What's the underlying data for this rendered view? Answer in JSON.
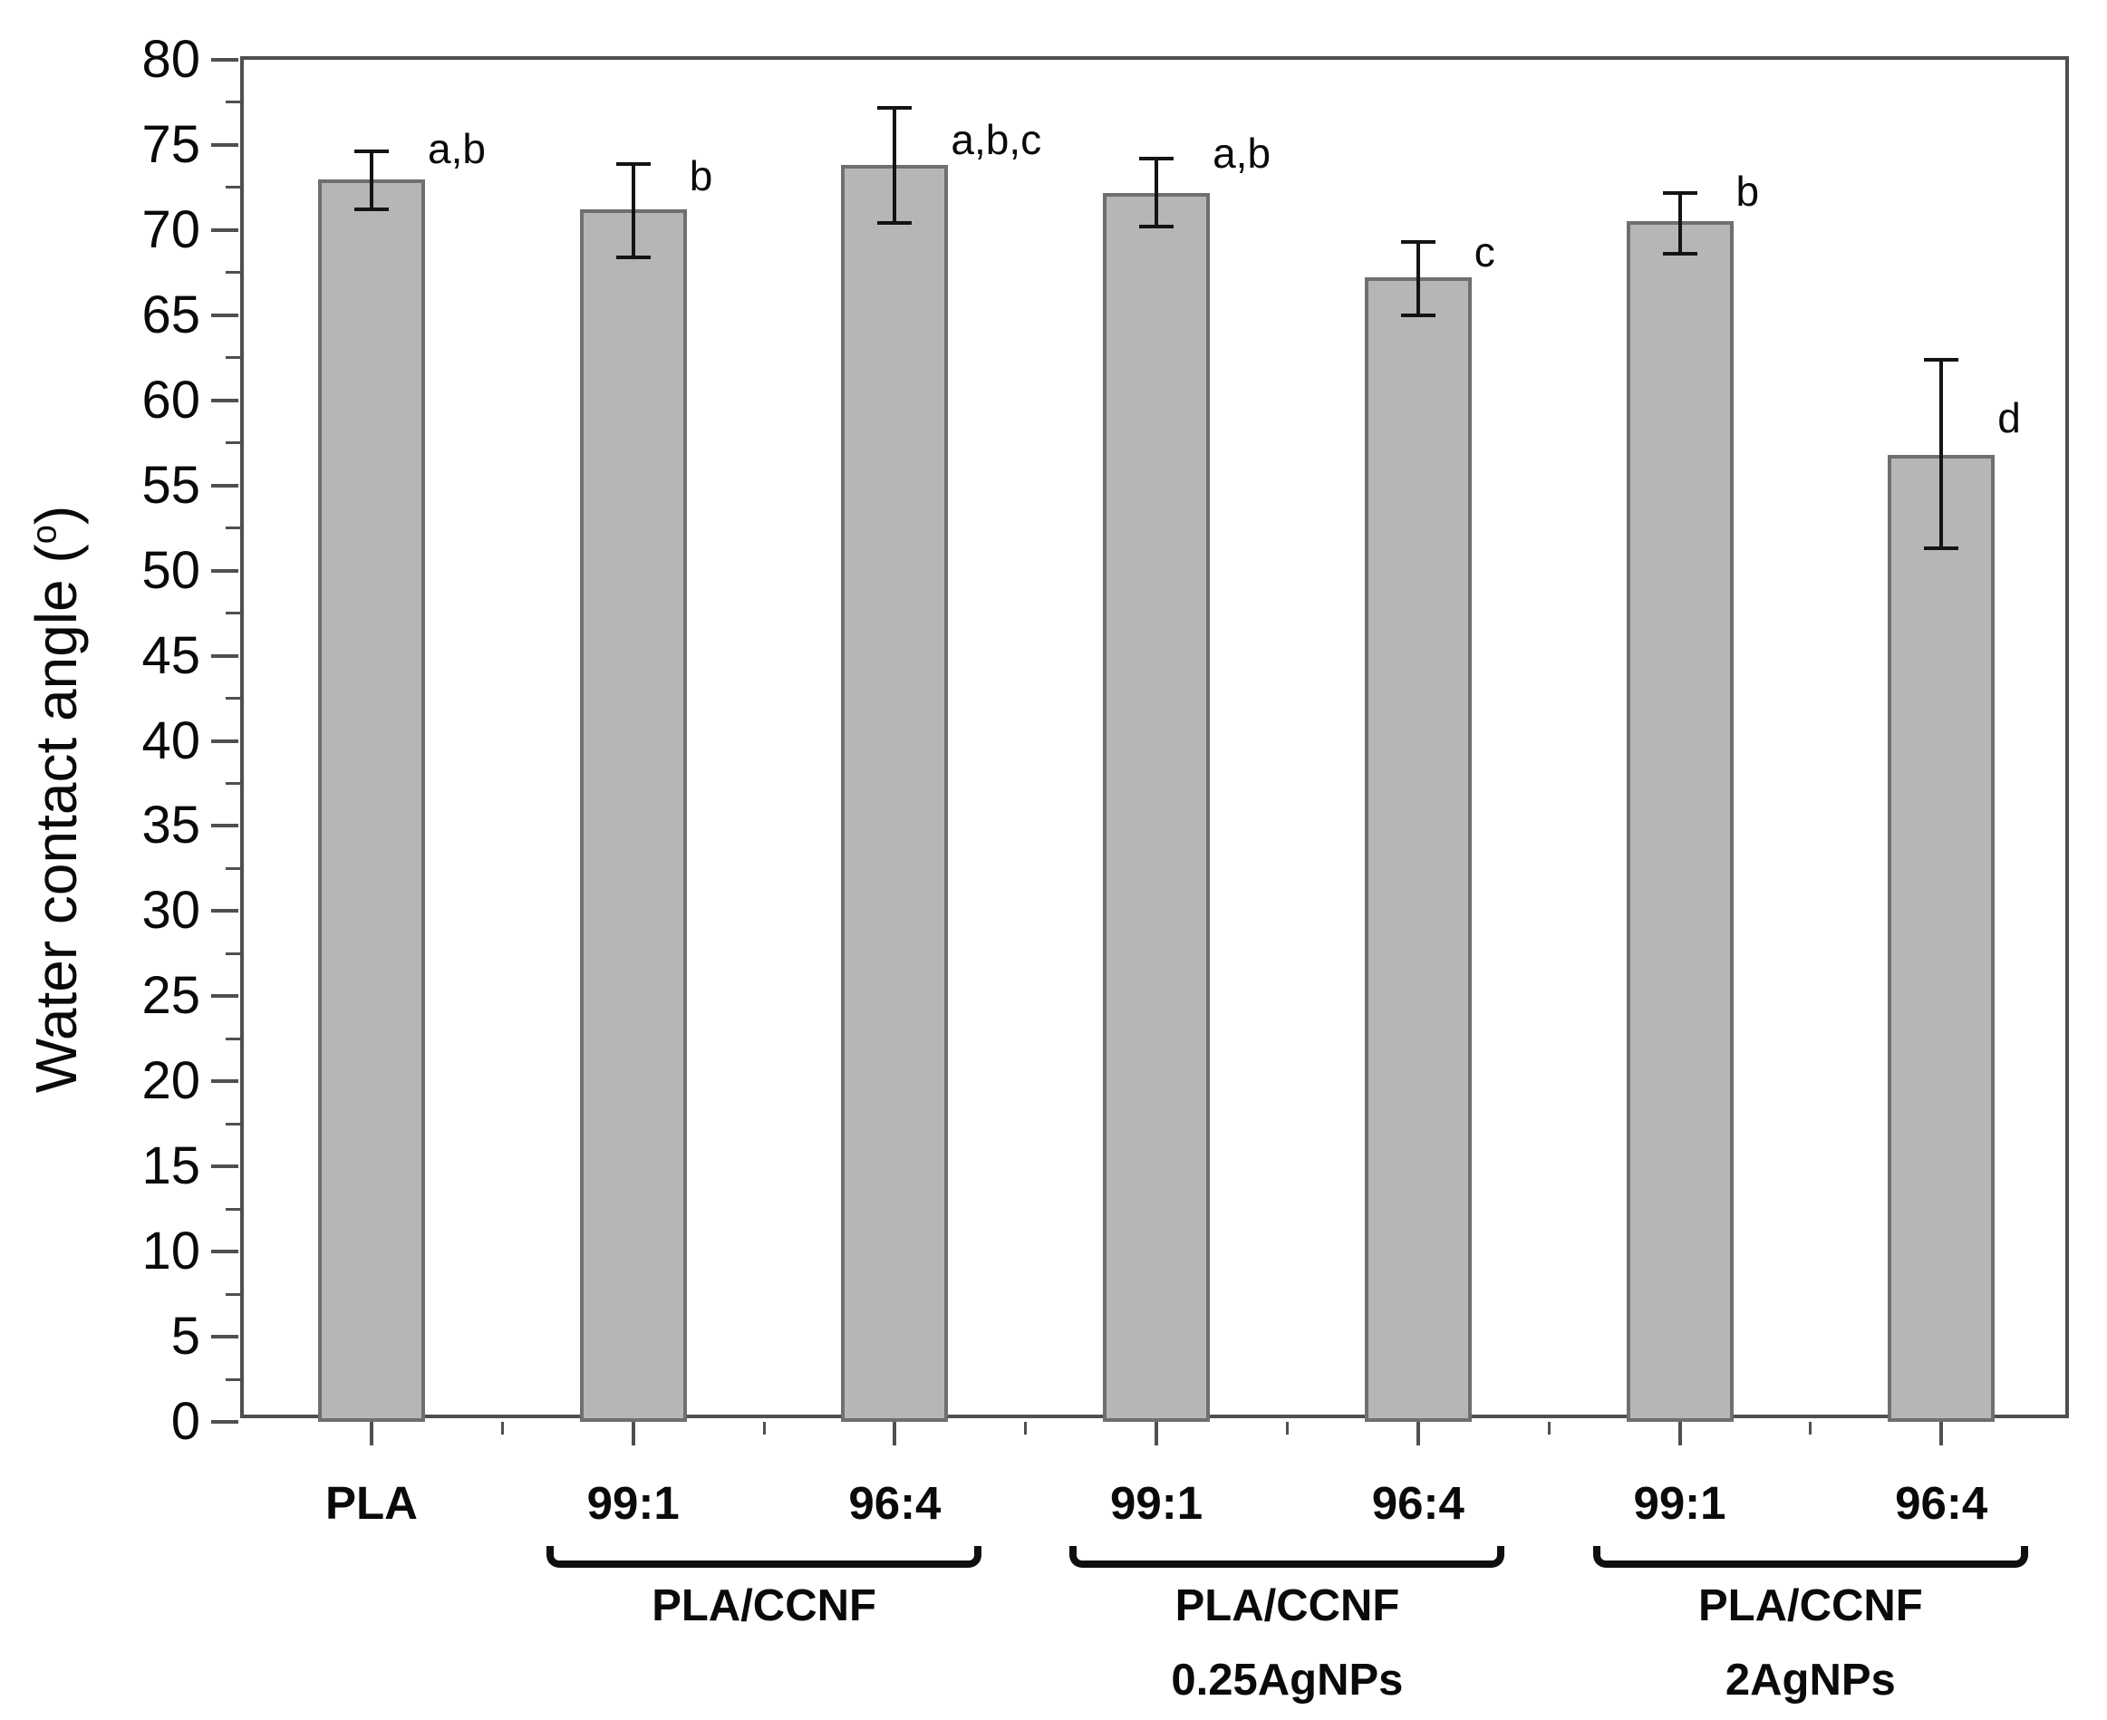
{
  "chart_data": {
    "type": "bar",
    "title": "",
    "xlabel": "",
    "ylabel": "Water contact angle (°)",
    "ylabel_parts": [
      "Water contact angle (",
      "o",
      ")"
    ],
    "ylim": [
      0,
      80
    ],
    "ytick_step": 5,
    "yminor_step": 2.5,
    "grid": false,
    "legend": false,
    "bar_fill": "#b6b6b6",
    "bar_border": "#6f6f6f",
    "axis_color": "#4f4f4f",
    "error_color": "#141414",
    "categories": [
      "PLA",
      "99:1",
      "96:4",
      "99:1",
      "96:4",
      "99:1",
      "96:4"
    ],
    "bars": [
      {
        "label": "PLA",
        "value": 73.0,
        "err_plus": 1.6,
        "err_minus": 1.8,
        "sig": "a,b",
        "sig_y": 74.8
      },
      {
        "label": "99:1",
        "value": 71.2,
        "err_plus": 2.7,
        "err_minus": 2.8,
        "sig": "b",
        "sig_y": 73.2
      },
      {
        "label": "96:4",
        "value": 73.8,
        "err_plus": 3.4,
        "err_minus": 3.4,
        "sig": "a,b,c",
        "sig_y": 75.3
      },
      {
        "label": "99:1",
        "value": 72.2,
        "err_plus": 2.0,
        "err_minus": 2.0,
        "sig": "a,b",
        "sig_y": 74.5
      },
      {
        "label": "96:4",
        "value": 67.2,
        "err_plus": 2.1,
        "err_minus": 2.2,
        "sig": "c",
        "sig_y": 68.7
      },
      {
        "label": "99:1",
        "value": 70.5,
        "err_plus": 1.7,
        "err_minus": 1.9,
        "sig": "b",
        "sig_y": 72.3
      },
      {
        "label": "96:4",
        "value": 56.8,
        "err_plus": 5.6,
        "err_minus": 5.5,
        "sig": "d",
        "sig_y": 59.0
      }
    ],
    "groups": [
      {
        "label_lines": [
          "PLA/CCNF"
        ],
        "bar_indices": [
          1,
          2
        ]
      },
      {
        "label_lines": [
          "PLA/CCNF",
          "0.25AgNPs"
        ],
        "bar_indices": [
          3,
          4
        ]
      },
      {
        "label_lines": [
          "PLA/CCNF",
          "2AgNPs"
        ],
        "bar_indices": [
          5,
          6
        ]
      }
    ]
  }
}
